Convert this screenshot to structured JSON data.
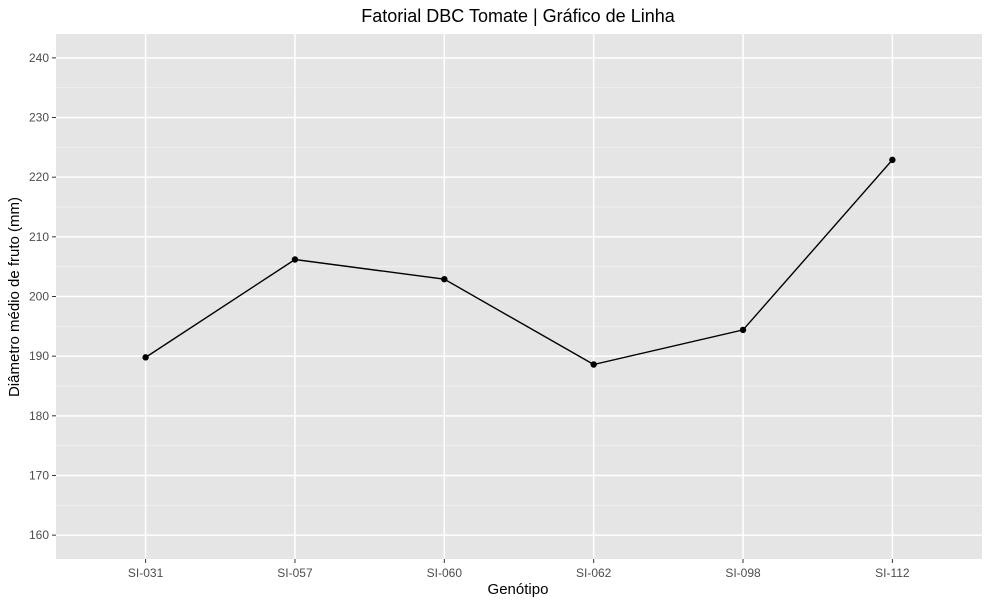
{
  "chart_data": {
    "type": "line",
    "title": "Fatorial DBC Tomate | Gráfico de Linha",
    "xlabel": "Genótipo",
    "ylabel": "Diâmetro médio de fruto (mm)",
    "categories": [
      "SI-031",
      "SI-057",
      "SI-060",
      "SI-062",
      "SI-098",
      "SI-112"
    ],
    "values": [
      189.8,
      206.2,
      202.9,
      188.6,
      194.4,
      222.9
    ],
    "ylim": [
      156,
      244
    ],
    "yticks": [
      160,
      170,
      180,
      190,
      200,
      210,
      220,
      230,
      240
    ],
    "grid": true,
    "colors": {
      "panel": "#e5e5e5",
      "grid": "#ffffff",
      "line": "#000000"
    }
  }
}
